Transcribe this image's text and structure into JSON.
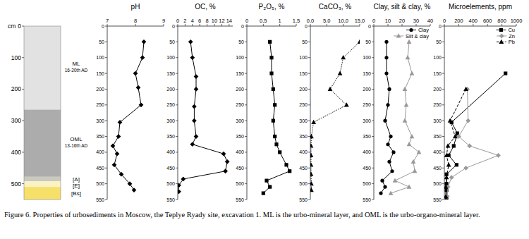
{
  "profile": {
    "axis_label": "cm",
    "ylim": [
      0,
      550
    ],
    "ticks": [
      0,
      100,
      200,
      300,
      400,
      500
    ],
    "layers": [
      {
        "label": "ML",
        "period": "16-20th AD",
        "top": 0,
        "bottom": 265,
        "color": "#e2e2e2"
      },
      {
        "label": "OML",
        "period": "13-16th AD",
        "top": 265,
        "bottom": 478,
        "color": "#acacac"
      },
      {
        "label": "[A]",
        "top": 478,
        "bottom": 492,
        "color": "#c9c9c0"
      },
      {
        "label": "[E]",
        "top": 492,
        "bottom": 510,
        "color": "#fbf2c4"
      },
      {
        "label": "[Bs]",
        "top": 510,
        "bottom": 550,
        "color": "#f6e06a"
      }
    ]
  },
  "chart_data": [
    {
      "type": "line",
      "title": "pH",
      "orientation": "horizontal",
      "xlim": [
        7,
        9
      ],
      "xticks": [
        7,
        8,
        9
      ],
      "ylim": [
        0,
        550
      ],
      "yticks": [
        0,
        50,
        100,
        150,
        200,
        250,
        300,
        350,
        400,
        450,
        500,
        550
      ],
      "series": [
        {
          "color": "#000000",
          "marker": "diamond",
          "line_style": "solid",
          "depth": [
            50,
            100,
            150,
            195,
            250,
            305,
            350,
            380,
            405,
            440,
            470,
            500,
            520
          ],
          "values": [
            8.3,
            8.25,
            8.0,
            8.1,
            8.2,
            7.45,
            7.4,
            7.2,
            7.35,
            7.25,
            7.5,
            7.8,
            7.95
          ]
        }
      ]
    },
    {
      "type": "line",
      "title": "OC, %",
      "orientation": "horizontal",
      "xlim": [
        0,
        15
      ],
      "xticks": [
        0,
        2,
        4,
        6,
        8,
        10,
        12,
        14
      ],
      "ylim": [
        0,
        550
      ],
      "yticks": [
        0,
        50,
        100,
        150,
        200,
        250,
        300,
        350,
        400,
        450,
        500,
        550
      ],
      "series": [
        {
          "color": "#000000",
          "marker": "diamond",
          "line_style": "solid",
          "depth": [
            50,
            100,
            160,
            200,
            255,
            300,
            350,
            375,
            405,
            430,
            460,
            485,
            505,
            525
          ],
          "values": [
            3.5,
            4.0,
            5.0,
            5.0,
            4.5,
            4.5,
            5.0,
            4.0,
            12.5,
            13.5,
            13.0,
            1.5,
            0.3,
            0.3
          ]
        }
      ]
    },
    {
      "type": "line",
      "title": "P₂O₅, %",
      "orientation": "horizontal",
      "xlim": [
        0,
        1.5
      ],
      "xticks": [
        0,
        {
          "value": 0.5,
          "label": "0,5"
        },
        1,
        {
          "value": 1.5,
          "label": "1,5"
        }
      ],
      "ylim": [
        0,
        550
      ],
      "yticks": [
        0,
        50,
        100,
        150,
        200,
        250,
        300,
        350,
        400,
        450,
        500,
        550
      ],
      "series": [
        {
          "color": "#000000",
          "marker": "square",
          "line_style": "solid",
          "depth": [
            50,
            100,
            150,
            200,
            250,
            300,
            350,
            375,
            400,
            440,
            460,
            490,
            510,
            530
          ],
          "values": [
            0.7,
            0.75,
            0.75,
            0.8,
            0.85,
            0.8,
            0.85,
            0.9,
            1.0,
            1.2,
            1.3,
            0.6,
            0.7,
            0.5
          ]
        }
      ]
    },
    {
      "type": "line",
      "title": "CaCO₃, %",
      "orientation": "horizontal",
      "xlim": [
        0,
        15
      ],
      "xticks": [
        {
          "value": 0,
          "label": "0,0"
        },
        {
          "value": 5,
          "label": "5,0"
        },
        {
          "value": 10,
          "label": "10,0"
        },
        {
          "value": 15,
          "label": "15,0"
        }
      ],
      "ylim": [
        0,
        550
      ],
      "yticks": [
        0,
        50,
        100,
        150,
        200,
        250,
        300,
        350,
        400,
        450,
        500,
        550
      ],
      "series": [
        {
          "color": "#000000",
          "marker": "triangle",
          "line_style": "dotted",
          "depth": [
            50,
            100,
            150,
            200,
            250,
            305,
            350,
            380,
            410,
            440,
            470,
            500,
            520
          ],
          "values": [
            15,
            10,
            9,
            6,
            11,
            1,
            0.3,
            0.2,
            0.2,
            0.2,
            0.2,
            0.3,
            0.3
          ]
        }
      ]
    },
    {
      "type": "line",
      "title": "Clay, silt & clay, %",
      "orientation": "horizontal",
      "legend": "upper right",
      "xlim": [
        0,
        40
      ],
      "xticks": [
        0,
        10,
        20,
        30,
        40
      ],
      "ylim": [
        0,
        550
      ],
      "yticks": [
        0,
        50,
        100,
        150,
        200,
        250,
        300,
        350,
        400,
        450,
        500,
        550
      ],
      "series": [
        {
          "name": "Clay",
          "color": "#000000",
          "marker": "circle",
          "line_style": "solid",
          "depth": [
            50,
            100,
            150,
            200,
            250,
            300,
            350,
            375,
            400,
            430,
            460,
            490,
            510,
            530
          ],
          "values": [
            9,
            9,
            9,
            11,
            10,
            8,
            12,
            10,
            14,
            11,
            13,
            6,
            8,
            5
          ]
        },
        {
          "name": "Silt & clay",
          "color": "#999999",
          "marker": "triangle",
          "line_style": "solid",
          "depth": [
            50,
            100,
            150,
            200,
            250,
            300,
            350,
            375,
            400,
            430,
            460,
            490,
            510,
            530
          ],
          "values": [
            25,
            24,
            27,
            22,
            23,
            22,
            27,
            25,
            32,
            28,
            29,
            15,
            25,
            12
          ]
        }
      ]
    },
    {
      "type": "line",
      "title": "Microelements, ppm",
      "orientation": "horizontal",
      "legend": "upper right",
      "xlim": [
        0,
        1000
      ],
      "xticks": [
        0,
        200,
        400,
        600,
        800,
        1000
      ],
      "ylim": [
        0,
        550
      ],
      "yticks": [
        0,
        50,
        100,
        150,
        200,
        250,
        300,
        350,
        400,
        450,
        500,
        550
      ],
      "series": [
        {
          "name": "Cu",
          "color": "#000000",
          "marker": "square",
          "line_style": "solid",
          "depth": [
            150,
            305,
            340,
            380,
            410,
            440,
            470,
            500,
            520,
            545
          ],
          "values": [
            850,
            100,
            180,
            130,
            60,
            170,
            30,
            30,
            30,
            30
          ]
        },
        {
          "name": "Zn",
          "color": "#999999",
          "marker": "diamond",
          "line_style": "solid",
          "depth": [
            200,
            300,
            350,
            380,
            410,
            450,
            480,
            510,
            540
          ],
          "values": [
            320,
            330,
            200,
            350,
            750,
            300,
            100,
            50,
            40
          ]
        },
        {
          "name": "Pb",
          "color": "#000000",
          "marker": "triangle",
          "line_style": "dashed",
          "depth": [
            200,
            300,
            350,
            380,
            410,
            440,
            480,
            510,
            540
          ],
          "values": [
            300,
            80,
            150,
            50,
            30,
            60,
            30,
            20,
            20
          ]
        }
      ]
    }
  ],
  "caption": "Figure 6. Properties of urbosediments in Moscow, the Teplye Ryady site, excavation 1. ML is the urbo-mineral layer, and OML is the urbo-organo-mineral layer."
}
